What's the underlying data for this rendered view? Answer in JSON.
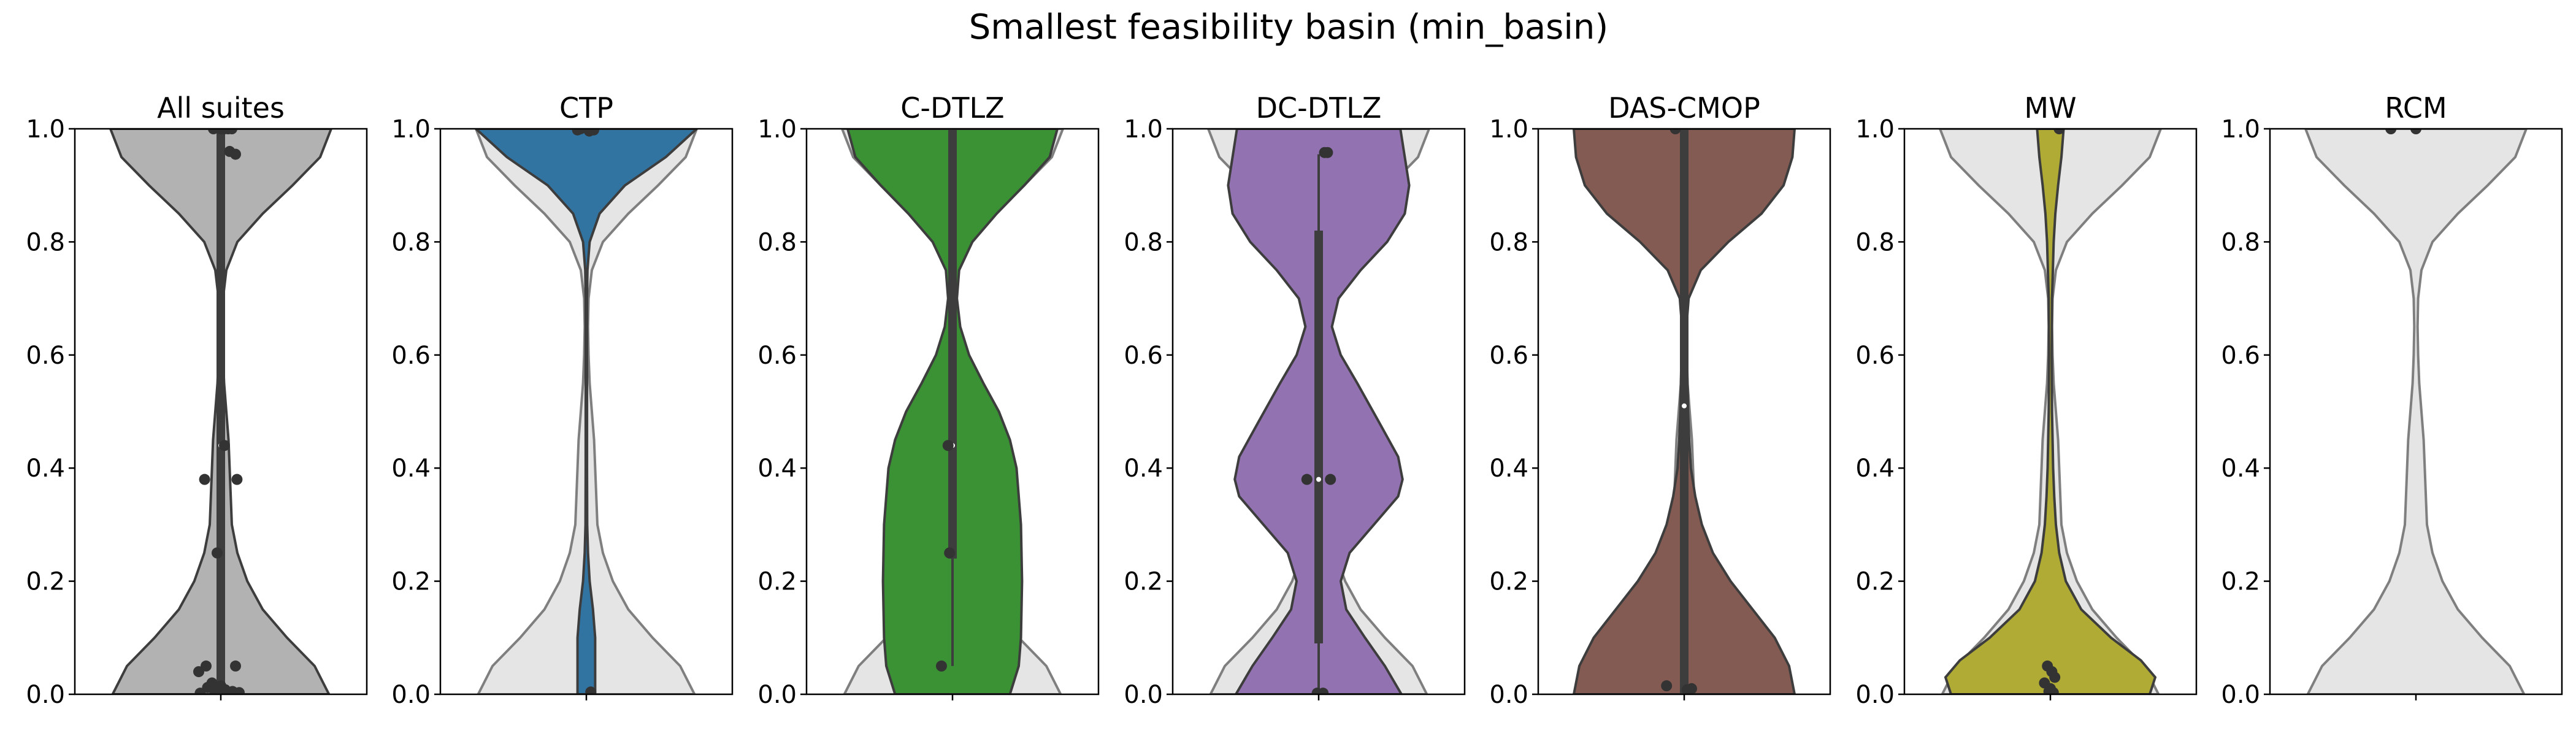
{
  "figure_title": "Smallest feasibility basin (min_basin)",
  "colors": {
    "background_violin": "#e5e5e5",
    "background_violin_edge": "#7f7f7f",
    "violin_edge": "#3d3d3d",
    "box": "#3d3d3d",
    "points": "#333333",
    "median": "#ffffff"
  },
  "chart_data": [
    {
      "type": "violin",
      "title": "All suites",
      "color": "#b2b2b2",
      "xlabel": "",
      "ylabel": "",
      "ylim": [
        0,
        1
      ],
      "yticks": [
        "0.0",
        "0.2",
        "0.4",
        "0.6",
        "0.8",
        "1.0"
      ],
      "show_background": false,
      "density": [
        [
          0,
          0.98
        ],
        [
          0.05,
          0.85
        ],
        [
          0.1,
          0.6
        ],
        [
          0.15,
          0.38
        ],
        [
          0.2,
          0.24
        ],
        [
          0.25,
          0.15
        ],
        [
          0.3,
          0.1
        ],
        [
          0.35,
          0.09
        ],
        [
          0.4,
          0.08
        ],
        [
          0.45,
          0.07
        ],
        [
          0.5,
          0.05
        ],
        [
          0.55,
          0.03
        ],
        [
          0.6,
          0.02
        ],
        [
          0.65,
          0.015
        ],
        [
          0.7,
          0.02
        ],
        [
          0.75,
          0.05
        ],
        [
          0.8,
          0.15
        ],
        [
          0.85,
          0.38
        ],
        [
          0.9,
          0.65
        ],
        [
          0.95,
          0.9
        ],
        [
          1,
          1
        ]
      ],
      "box": {
        "q1": 0.01,
        "median": 0.44,
        "q3": 1.0,
        "whisker_low": 0.0,
        "whisker_high": 1.0
      },
      "points": [
        [
          0.0,
          1.0
        ],
        [
          0.05,
          1.0
        ],
        [
          -0.1,
          1.0
        ],
        [
          0.1,
          1.0
        ],
        [
          0.15,
          1.0
        ],
        [
          0.12,
          0.96
        ],
        [
          0.2,
          0.955
        ],
        [
          0.05,
          0.44
        ],
        [
          -0.22,
          0.38
        ],
        [
          0.22,
          0.38
        ],
        [
          -0.05,
          0.25
        ],
        [
          -0.2,
          0.05
        ],
        [
          0.2,
          0.05
        ],
        [
          -0.3,
          0.04
        ],
        [
          -0.12,
          0.02
        ],
        [
          0.0,
          0.015
        ],
        [
          -0.18,
          0.012
        ],
        [
          0.06,
          0.008
        ],
        [
          0.16,
          0.005
        ],
        [
          -0.08,
          0.004
        ],
        [
          0.25,
          0.003
        ],
        [
          -0.28,
          0.002
        ]
      ]
    },
    {
      "type": "violin",
      "title": "CTP",
      "color": "#3274a1",
      "xlabel": "",
      "ylabel": "",
      "ylim": [
        0,
        1
      ],
      "yticks": [
        "0.0",
        "0.2",
        "0.4",
        "0.6",
        "0.8",
        "1.0"
      ],
      "show_background": true,
      "density": [
        [
          0,
          0.08
        ],
        [
          0.05,
          0.08
        ],
        [
          0.1,
          0.08
        ],
        [
          0.15,
          0.06
        ],
        [
          0.2,
          0.03
        ],
        [
          0.25,
          0.015
        ],
        [
          0.3,
          0.008
        ],
        [
          0.4,
          0.006
        ],
        [
          0.5,
          0.006
        ],
        [
          0.6,
          0.006
        ],
        [
          0.7,
          0.006
        ],
        [
          0.75,
          0.01
        ],
        [
          0.8,
          0.03
        ],
        [
          0.85,
          0.12
        ],
        [
          0.9,
          0.35
        ],
        [
          0.95,
          0.72
        ],
        [
          1,
          1
        ]
      ],
      "box": null,
      "points": [
        [
          0.02,
          1.0
        ],
        [
          -0.12,
          0.998
        ],
        [
          -0.08,
          1.0
        ],
        [
          0.1,
          0.998
        ],
        [
          0.04,
          0.996
        ],
        [
          0.06,
          0.004
        ]
      ]
    },
    {
      "type": "violin",
      "title": "C-DTLZ",
      "color": "#3a9234",
      "xlabel": "",
      "ylabel": "",
      "ylim": [
        0,
        1
      ],
      "yticks": [
        "0.0",
        "0.2",
        "0.4",
        "0.6",
        "0.8",
        "1.0"
      ],
      "show_background": true,
      "density": [
        [
          0,
          0.52
        ],
        [
          0.05,
          0.6
        ],
        [
          0.1,
          0.62
        ],
        [
          0.2,
          0.63
        ],
        [
          0.3,
          0.62
        ],
        [
          0.4,
          0.58
        ],
        [
          0.45,
          0.52
        ],
        [
          0.5,
          0.42
        ],
        [
          0.55,
          0.28
        ],
        [
          0.6,
          0.15
        ],
        [
          0.65,
          0.07
        ],
        [
          0.7,
          0.04
        ],
        [
          0.75,
          0.06
        ],
        [
          0.8,
          0.18
        ],
        [
          0.85,
          0.4
        ],
        [
          0.9,
          0.65
        ],
        [
          0.95,
          0.88
        ],
        [
          1,
          0.95
        ]
      ],
      "box": {
        "q1": 0.24,
        "median": 0.44,
        "q3": 1.0,
        "whisker_low": 0.05,
        "whisker_high": 1.0
      },
      "points": [
        [
          -0.06,
          0.44
        ],
        [
          -0.04,
          0.25
        ],
        [
          -0.15,
          0.05
        ]
      ]
    },
    {
      "type": "violin",
      "title": "DC-DTLZ",
      "color": "#9372b2",
      "xlabel": "",
      "ylabel": "",
      "ylim": [
        0,
        1
      ],
      "yticks": [
        "0.0",
        "0.2",
        "0.4",
        "0.6",
        "0.8",
        "1.0"
      ],
      "show_background": true,
      "density": [
        [
          0,
          0.75
        ],
        [
          0.05,
          0.6
        ],
        [
          0.1,
          0.42
        ],
        [
          0.15,
          0.25
        ],
        [
          0.2,
          0.2
        ],
        [
          0.25,
          0.28
        ],
        [
          0.3,
          0.5
        ],
        [
          0.35,
          0.72
        ],
        [
          0.38,
          0.76
        ],
        [
          0.42,
          0.72
        ],
        [
          0.48,
          0.55
        ],
        [
          0.55,
          0.35
        ],
        [
          0.6,
          0.2
        ],
        [
          0.65,
          0.12
        ],
        [
          0.7,
          0.18
        ],
        [
          0.75,
          0.38
        ],
        [
          0.8,
          0.62
        ],
        [
          0.85,
          0.78
        ],
        [
          0.9,
          0.82
        ],
        [
          0.95,
          0.78
        ],
        [
          1,
          0.74
        ]
      ],
      "box": {
        "q1": 0.09,
        "median": 0.38,
        "q3": 0.82,
        "whisker_low": 0.0,
        "whisker_high": 0.955
      },
      "points": [
        [
          0.08,
          0.958
        ],
        [
          0.12,
          0.958
        ],
        [
          -0.16,
          0.38
        ],
        [
          0.16,
          0.38
        ],
        [
          -0.02,
          0.002
        ],
        [
          0.06,
          0.002
        ]
      ]
    },
    {
      "type": "violin",
      "title": "DAS-CMOP",
      "color": "#845b52",
      "xlabel": "",
      "ylabel": "",
      "ylim": [
        0,
        1
      ],
      "yticks": [
        "0.0",
        "0.2",
        "0.4",
        "0.6",
        "0.8",
        "1.0"
      ],
      "show_background": true,
      "density": [
        [
          0,
          1
        ],
        [
          0.05,
          0.95
        ],
        [
          0.1,
          0.82
        ],
        [
          0.15,
          0.62
        ],
        [
          0.2,
          0.42
        ],
        [
          0.25,
          0.26
        ],
        [
          0.3,
          0.16
        ],
        [
          0.35,
          0.1
        ],
        [
          0.4,
          0.06
        ],
        [
          0.45,
          0.045
        ],
        [
          0.5,
          0.035
        ],
        [
          0.55,
          0.03
        ],
        [
          0.6,
          0.025
        ],
        [
          0.65,
          0.02
        ],
        [
          0.7,
          0.04
        ],
        [
          0.75,
          0.15
        ],
        [
          0.8,
          0.4
        ],
        [
          0.85,
          0.7
        ],
        [
          0.9,
          0.9
        ],
        [
          0.95,
          0.98
        ],
        [
          1,
          1
        ]
      ],
      "box": {
        "q1": 0.0,
        "median": 0.51,
        "q3": 1.0,
        "whisker_low": 0.0,
        "whisker_high": 1.0
      },
      "points": [
        [
          -0.12,
          1.0
        ],
        [
          -0.24,
          0.015
        ],
        [
          0.04,
          0.008
        ],
        [
          0.1,
          0.01
        ]
      ]
    },
    {
      "type": "violin",
      "title": "MW",
      "color": "#afab35",
      "xlabel": "",
      "ylabel": "",
      "ylim": [
        0,
        1
      ],
      "yticks": [
        "0.0",
        "0.2",
        "0.4",
        "0.6",
        "0.8",
        "1.0"
      ],
      "show_background": true,
      "density": [
        [
          0,
          0.9
        ],
        [
          0.03,
          0.95
        ],
        [
          0.06,
          0.82
        ],
        [
          0.1,
          0.55
        ],
        [
          0.15,
          0.28
        ],
        [
          0.2,
          0.14
        ],
        [
          0.25,
          0.08
        ],
        [
          0.3,
          0.05
        ],
        [
          0.35,
          0.035
        ],
        [
          0.4,
          0.025
        ],
        [
          0.5,
          0.015
        ],
        [
          0.6,
          0.012
        ],
        [
          0.7,
          0.015
        ],
        [
          0.8,
          0.03
        ],
        [
          0.85,
          0.045
        ],
        [
          0.9,
          0.07
        ],
        [
          0.95,
          0.1
        ],
        [
          1,
          0.12
        ]
      ],
      "box": null,
      "points": [
        [
          0.12,
          1.0
        ],
        [
          -0.04,
          0.05
        ],
        [
          0.02,
          0.04
        ],
        [
          -0.08,
          0.02
        ],
        [
          0.06,
          0.03
        ],
        [
          0.0,
          0.01
        ],
        [
          -0.02,
          0.005
        ],
        [
          0.04,
          0.003
        ]
      ]
    },
    {
      "type": "violin",
      "title": "RCM",
      "color": "#e5e5e5",
      "xlabel": "",
      "ylabel": "",
      "ylim": [
        0,
        1
      ],
      "yticks": [
        "0.0",
        "0.2",
        "0.4",
        "0.6",
        "0.8",
        "1.0"
      ],
      "show_background": true,
      "density": [],
      "box": null,
      "points": [
        [
          -0.34,
          1.0
        ],
        [
          0.0,
          1.0
        ]
      ]
    }
  ]
}
